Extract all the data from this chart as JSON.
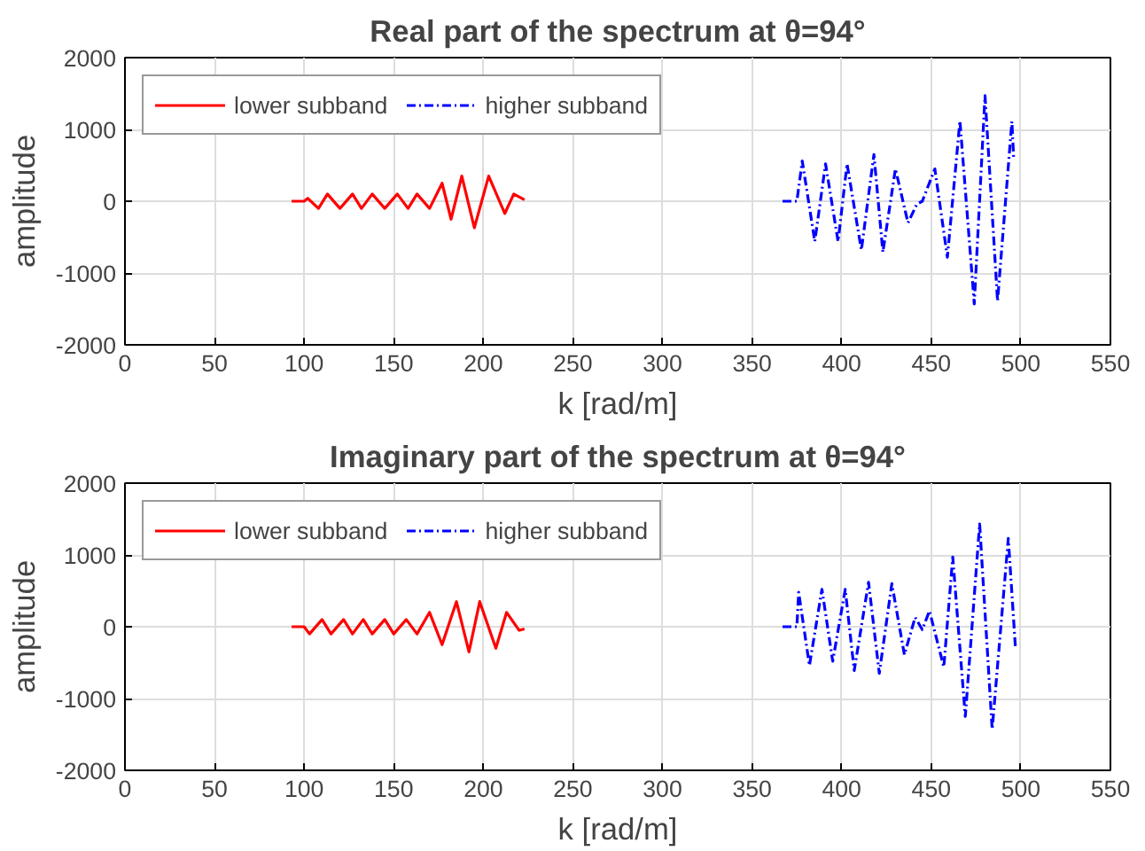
{
  "chart_data": [
    {
      "type": "line",
      "title": "Real part of the spectrum at θ=94°",
      "xlabel": "k [rad/m]",
      "ylabel": "amplitude",
      "xlim": [
        0,
        550
      ],
      "ylim": [
        -2000,
        2000
      ],
      "xticks": [
        0,
        50,
        100,
        150,
        200,
        250,
        300,
        350,
        400,
        450,
        500,
        550
      ],
      "yticks": [
        -2000,
        -1000,
        0,
        1000,
        2000
      ],
      "grid": true,
      "legend": "top left",
      "series": [
        {
          "name": "lower subband",
          "color": "#ff0000",
          "line_style": "solid",
          "x": [
            93,
            100,
            102,
            108,
            113,
            120,
            127,
            132,
            138,
            145,
            152,
            158,
            163,
            170,
            177,
            182,
            188,
            195,
            203,
            212,
            217,
            223
          ],
          "values": [
            0,
            0,
            40,
            -100,
            100,
            -100,
            100,
            -100,
            100,
            -100,
            100,
            -100,
            100,
            -100,
            250,
            -250,
            350,
            -370,
            350,
            -170,
            100,
            20
          ]
        },
        {
          "name": "higher subband",
          "color": "#0000ff",
          "line_style": "dashdot",
          "x": [
            367,
            375,
            378,
            385,
            391,
            398,
            403,
            411,
            418,
            423,
            430,
            437,
            442,
            445,
            452,
            459,
            466,
            474,
            480,
            487,
            495,
            496
          ],
          "values": [
            0,
            0,
            560,
            -560,
            520,
            -560,
            520,
            -680,
            650,
            -710,
            450,
            -300,
            -40,
            0,
            450,
            -780,
            1120,
            -1430,
            1470,
            -1390,
            1110,
            600
          ]
        }
      ]
    },
    {
      "type": "line",
      "title": "Imaginary part of the spectrum at θ=94°",
      "xlabel": "k [rad/m]",
      "ylabel": "amplitude",
      "xlim": [
        0,
        550
      ],
      "ylim": [
        -2000,
        2000
      ],
      "xticks": [
        0,
        50,
        100,
        150,
        200,
        250,
        300,
        350,
        400,
        450,
        500,
        550
      ],
      "yticks": [
        -2000,
        -1000,
        0,
        1000,
        2000
      ],
      "grid": true,
      "legend": "top left",
      "series": [
        {
          "name": "lower subband",
          "color": "#ff0000",
          "line_style": "solid",
          "x": [
            93,
            100,
            103,
            110,
            115,
            122,
            127,
            133,
            138,
            145,
            150,
            157,
            163,
            170,
            177,
            185,
            192,
            198,
            207,
            213,
            220,
            223
          ],
          "values": [
            0,
            0,
            -100,
            100,
            -100,
            100,
            -100,
            100,
            -100,
            100,
            -100,
            100,
            -100,
            200,
            -250,
            350,
            -350,
            350,
            -300,
            200,
            -50,
            -30
          ]
        },
        {
          "name": "higher subband",
          "color": "#0000ff",
          "line_style": "dashdot",
          "x": [
            367,
            375,
            376,
            382,
            389,
            395,
            402,
            407,
            415,
            421,
            428,
            435,
            441,
            445,
            449,
            457,
            462,
            469,
            477,
            484,
            493,
            497
          ],
          "values": [
            0,
            0,
            480,
            -540,
            520,
            -480,
            520,
            -610,
            620,
            -650,
            600,
            -390,
            130,
            -40,
            220,
            -560,
            970,
            -1250,
            1430,
            -1430,
            1230,
            -300
          ]
        }
      ]
    }
  ]
}
